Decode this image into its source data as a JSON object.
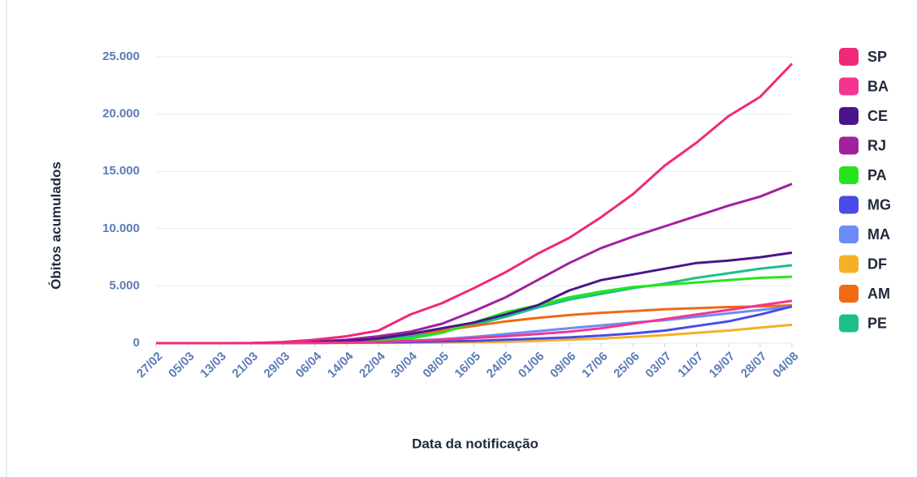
{
  "chart_data": {
    "type": "line",
    "y_label": "Óbitos acumulados",
    "x_label": "Data da notificação",
    "categories": [
      "27/02",
      "05/03",
      "13/03",
      "21/03",
      "29/03",
      "06/04",
      "14/04",
      "22/04",
      "30/04",
      "08/05",
      "16/05",
      "24/05",
      "01/06",
      "09/06",
      "17/06",
      "25/06",
      "03/07",
      "11/07",
      "19/07",
      "28/07",
      "04/08"
    ],
    "ylim": [
      0,
      25000
    ],
    "yticks": [
      0,
      {
        "value": 5000,
        "label": "5.000"
      },
      {
        "value": 10000,
        "label": "10.000"
      },
      {
        "value": 15000,
        "label": "15.000"
      },
      {
        "value": 20000,
        "label": "20.000"
      },
      {
        "value": 25000,
        "label": "25.000"
      }
    ],
    "grid": true,
    "legend": "right",
    "series": [
      {
        "name": "SP",
        "color": "#f0287a",
        "values": [
          0,
          0,
          0,
          10,
          100,
          300,
          600,
          1100,
          2500,
          3500,
          4800,
          6200,
          7800,
          9200,
          11000,
          13000,
          15500,
          17500,
          19800,
          21500,
          24400
        ]
      },
      {
        "name": "BA",
        "color": "#f2358f",
        "values": [
          0,
          0,
          0,
          0,
          5,
          20,
          50,
          100,
          200,
          300,
          450,
          600,
          800,
          1000,
          1300,
          1700,
          2100,
          2500,
          2900,
          3300,
          3700
        ]
      },
      {
        "name": "CE",
        "color": "#4a148c",
        "values": [
          0,
          0,
          0,
          0,
          10,
          80,
          200,
          400,
          800,
          1300,
          1800,
          2500,
          3300,
          4600,
          5500,
          6000,
          6500,
          7000,
          7200,
          7500,
          7900
        ]
      },
      {
        "name": "RJ",
        "color": "#a0229c",
        "values": [
          0,
          0,
          0,
          5,
          50,
          150,
          300,
          600,
          1000,
          1700,
          2800,
          4000,
          5500,
          7000,
          8300,
          9300,
          10200,
          11100,
          12000,
          12800,
          13900
        ]
      },
      {
        "name": "PA",
        "color": "#26e51c",
        "values": [
          0,
          0,
          0,
          0,
          0,
          20,
          80,
          200,
          400,
          900,
          1800,
          2700,
          3300,
          4000,
          4500,
          4900,
          5100,
          5300,
          5500,
          5700,
          5800
        ]
      },
      {
        "name": "MG",
        "color": "#4a4ae8",
        "values": [
          0,
          0,
          0,
          0,
          5,
          20,
          40,
          70,
          100,
          150,
          200,
          300,
          400,
          500,
          650,
          850,
          1100,
          1500,
          1900,
          2500,
          3200
        ]
      },
      {
        "name": "MA",
        "color": "#6b8cf5",
        "values": [
          0,
          0,
          0,
          0,
          0,
          20,
          50,
          100,
          200,
          350,
          550,
          800,
          1050,
          1300,
          1550,
          1800,
          2000,
          2300,
          2600,
          2900,
          3200
        ]
      },
      {
        "name": "DF",
        "color": "#f5b025",
        "values": [
          0,
          0,
          0,
          0,
          0,
          5,
          15,
          25,
          35,
          50,
          80,
          130,
          200,
          300,
          400,
          550,
          700,
          900,
          1100,
          1350,
          1600
        ]
      },
      {
        "name": "AM",
        "color": "#f06a14",
        "values": [
          0,
          0,
          0,
          0,
          20,
          100,
          250,
          500,
          800,
          1100,
          1500,
          1900,
          2200,
          2450,
          2650,
          2800,
          2950,
          3050,
          3150,
          3200,
          3300
        ]
      },
      {
        "name": "PE",
        "color": "#1cbf8a",
        "values": [
          0,
          0,
          0,
          0,
          5,
          50,
          150,
          300,
          600,
          1000,
          1600,
          2300,
          3100,
          3800,
          4300,
          4800,
          5200,
          5700,
          6100,
          6500,
          6800
        ]
      }
    ]
  }
}
